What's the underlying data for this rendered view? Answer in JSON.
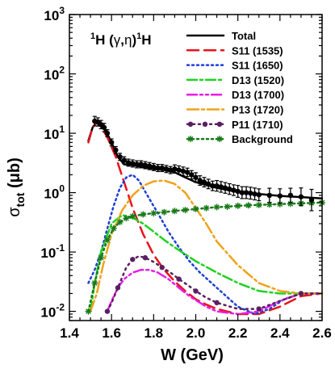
{
  "chart_data": {
    "type": "line",
    "title": "",
    "reaction": {
      "target": "1",
      "a": "H (",
      "g": "γ",
      "comma": ",",
      "e": "η",
      "close": ")",
      "product": "1",
      "h": "H"
    },
    "xlabel": "W (GeV)",
    "ylabel": {
      "sym": "σ",
      "sub": "tot",
      "unit": " (μb)"
    },
    "xlim": [
      1.4,
      2.6
    ],
    "ylim": [
      0.007,
      1000
    ],
    "yscale": "log",
    "grid": false,
    "legend_position": "top-right",
    "x_ticks": [
      "1.4",
      "1.6",
      "1.8",
      "2.0",
      "2.2",
      "2.4",
      "2.6"
    ],
    "y_ticks": [
      {
        "base": "10",
        "exp": "-2"
      },
      {
        "base": "10",
        "exp": "-1"
      },
      {
        "base": "10",
        "exp": "0"
      },
      {
        "base": "10",
        "exp": "1"
      },
      {
        "base": "10",
        "exp": "2"
      },
      {
        "base": "10",
        "exp": "3"
      }
    ],
    "series": [
      {
        "name": "Total",
        "color": "#000000",
        "dash": "",
        "width": 2.5,
        "marker": "",
        "x": [
          1.49,
          1.51,
          1.53,
          1.55,
          1.57,
          1.6,
          1.63,
          1.66,
          1.7,
          1.75,
          1.8,
          1.85,
          1.9,
          1.95,
          2.0,
          2.1,
          2.2,
          2.3,
          2.4,
          2.5,
          2.6
        ],
        "y": [
          7.5,
          12.5,
          15.5,
          14.2,
          11.5,
          7.0,
          4.0,
          3.0,
          2.9,
          2.7,
          2.5,
          2.4,
          2.2,
          1.8,
          1.5,
          1.2,
          1.02,
          0.95,
          0.88,
          0.84,
          0.8
        ]
      },
      {
        "name": "S11 (1535)",
        "color": "#e8131b",
        "dash": "14,7",
        "width": 2.5,
        "marker": "",
        "x": [
          1.49,
          1.51,
          1.53,
          1.55,
          1.58,
          1.62,
          1.66,
          1.7,
          1.75,
          1.8,
          1.85,
          1.9,
          1.95,
          2.0,
          2.05,
          2.1,
          2.2,
          2.3,
          2.4,
          2.5,
          2.6
        ],
        "y": [
          7.0,
          12.5,
          15.0,
          13.0,
          8.5,
          4.0,
          1.5,
          0.55,
          0.2,
          0.09,
          0.05,
          0.032,
          0.022,
          0.016,
          0.013,
          0.011,
          0.009,
          0.009,
          0.012,
          0.018,
          0.02
        ]
      },
      {
        "name": "S11 (1650)",
        "color": "#1f3fd6",
        "dash": "2,4",
        "width": 2.5,
        "marker": "",
        "x": [
          1.49,
          1.52,
          1.55,
          1.58,
          1.61,
          1.64,
          1.67,
          1.7,
          1.73,
          1.77,
          1.82,
          1.87,
          1.92,
          1.97,
          2.02,
          2.1,
          2.2,
          2.28,
          2.35,
          2.42,
          2.5,
          2.6
        ],
        "y": [
          0.03,
          0.05,
          0.1,
          0.25,
          0.6,
          1.2,
          1.8,
          2.0,
          1.6,
          0.9,
          0.45,
          0.22,
          0.12,
          0.07,
          0.045,
          0.025,
          0.012,
          0.009,
          0.011,
          0.016,
          0.02,
          0.02
        ]
      },
      {
        "name": "D13 (1520)",
        "color": "#1fd21f",
        "dash": "12,4,3,4",
        "width": 2.5,
        "marker": "",
        "x": [
          1.5,
          1.52,
          1.55,
          1.6,
          1.65,
          1.7,
          1.75,
          1.8,
          1.85,
          1.9,
          2.0,
          2.1,
          2.2,
          2.3,
          2.4,
          2.5,
          2.6
        ],
        "y": [
          0.01,
          0.03,
          0.1,
          0.3,
          0.42,
          0.38,
          0.3,
          0.22,
          0.16,
          0.12,
          0.07,
          0.045,
          0.03,
          0.022,
          0.02,
          0.02,
          0.02
        ]
      },
      {
        "name": "D13 (1700)",
        "color": "#e51ee5",
        "dash": "12,4,3,4,3,4",
        "width": 2.5,
        "marker": "",
        "x": [
          1.58,
          1.6,
          1.63,
          1.66,
          1.7,
          1.74,
          1.78,
          1.82,
          1.87,
          1.92,
          1.97,
          2.05,
          2.1,
          2.2,
          2.3,
          2.4,
          2.5,
          2.6
        ],
        "y": [
          0.01,
          0.015,
          0.025,
          0.035,
          0.045,
          0.05,
          0.05,
          0.045,
          0.035,
          0.025,
          0.018,
          0.012,
          0.01,
          0.009,
          0.01,
          0.015,
          0.02,
          0.02
        ]
      },
      {
        "name": "P13 (1720)",
        "color": "#f0a21a",
        "dash": "14,4,3,4",
        "width": 2.5,
        "marker": "",
        "x": [
          1.5,
          1.53,
          1.56,
          1.6,
          1.65,
          1.7,
          1.75,
          1.8,
          1.85,
          1.9,
          1.95,
          2.0,
          2.05,
          2.1,
          2.2,
          2.3,
          2.4,
          2.5,
          2.6
        ],
        "y": [
          0.01,
          0.02,
          0.06,
          0.2,
          0.5,
          0.9,
          1.3,
          1.55,
          1.6,
          1.4,
          1.0,
          0.55,
          0.3,
          0.15,
          0.06,
          0.03,
          0.022,
          0.02,
          0.02
        ]
      },
      {
        "name": "P11 (1710)",
        "color": "#5a1e62",
        "dash": "2,5",
        "width": 2.5,
        "marker": "circle",
        "x": [
          1.58,
          1.6,
          1.63,
          1.67,
          1.7,
          1.73,
          1.76,
          1.8,
          1.84,
          1.88,
          1.92,
          1.96,
          2.0,
          2.05,
          2.1,
          2.2,
          2.3,
          2.4,
          2.5,
          2.6
        ],
        "y": [
          0.01,
          0.014,
          0.025,
          0.055,
          0.075,
          0.085,
          0.08,
          0.068,
          0.055,
          0.045,
          0.035,
          0.028,
          0.022,
          0.017,
          0.014,
          0.011,
          0.011,
          0.015,
          0.02,
          0.02
        ]
      },
      {
        "name": "Background",
        "color": "#187a18",
        "dash": "2,4",
        "width": 2.5,
        "marker": "star",
        "x": [
          1.49,
          1.52,
          1.55,
          1.58,
          1.61,
          1.64,
          1.67,
          1.7,
          1.75,
          1.8,
          1.85,
          1.9,
          1.95,
          2.0,
          2.05,
          2.1,
          2.15,
          2.2,
          2.25,
          2.3,
          2.35,
          2.4,
          2.45,
          2.5,
          2.55,
          2.6
        ],
        "y": [
          0.01,
          0.03,
          0.08,
          0.16,
          0.25,
          0.32,
          0.37,
          0.4,
          0.43,
          0.45,
          0.47,
          0.49,
          0.51,
          0.53,
          0.55,
          0.57,
          0.58,
          0.6,
          0.61,
          0.62,
          0.63,
          0.64,
          0.65,
          0.66,
          0.67,
          0.68
        ]
      },
      {
        "name": "",
        "color": "#000000",
        "dash": "",
        "width": 0,
        "marker": "data",
        "x": [
          1.52,
          1.535,
          1.55,
          1.565,
          1.58,
          1.6,
          1.62,
          1.64,
          1.66,
          1.68,
          1.7,
          1.72,
          1.74,
          1.76,
          1.78,
          1.8,
          1.82,
          1.84,
          1.86,
          1.88,
          1.9,
          1.92,
          1.94,
          1.96,
          1.98,
          2.0,
          2.02,
          2.04,
          2.06,
          2.08,
          2.1,
          2.12,
          2.14,
          2.16,
          2.18,
          2.2,
          2.22,
          2.24,
          2.26,
          2.28,
          2.3,
          2.35,
          2.4,
          2.45,
          2.5,
          2.55
        ],
        "y": [
          16.0,
          15.5,
          14.0,
          12.5,
          10.0,
          7.0,
          5.2,
          4.0,
          3.5,
          3.2,
          3.1,
          3.0,
          3.0,
          2.9,
          2.8,
          2.7,
          2.6,
          2.6,
          2.5,
          2.4,
          2.5,
          2.4,
          2.3,
          2.2,
          2.0,
          1.8,
          1.6,
          1.5,
          1.4,
          1.3,
          1.3,
          1.25,
          1.2,
          1.15,
          1.1,
          1.05,
          1.0,
          1.0,
          0.98,
          0.95,
          0.92,
          0.9,
          0.88,
          0.9,
          0.85,
          0.75
        ],
        "err": [
          0.08,
          0.07,
          0.07,
          0.07,
          0.06,
          0.06,
          0.06,
          0.06,
          0.06,
          0.06,
          0.06,
          0.06,
          0.06,
          0.06,
          0.06,
          0.06,
          0.06,
          0.06,
          0.06,
          0.06,
          0.07,
          0.07,
          0.07,
          0.07,
          0.07,
          0.08,
          0.08,
          0.08,
          0.08,
          0.08,
          0.09,
          0.09,
          0.09,
          0.09,
          0.09,
          0.1,
          0.1,
          0.1,
          0.1,
          0.1,
          0.1,
          0.12,
          0.12,
          0.12,
          0.15,
          0.18
        ]
      }
    ]
  }
}
